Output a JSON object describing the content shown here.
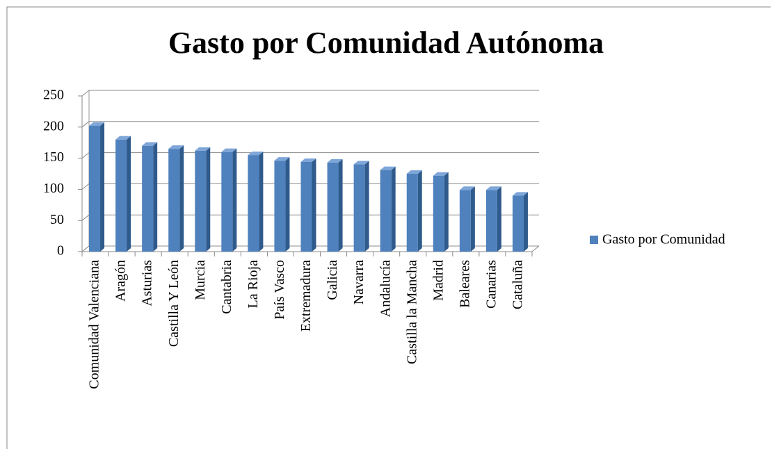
{
  "chart_data": {
    "type": "bar3d",
    "title": "Gasto por Comunidad Autónoma",
    "categories": [
      "Comunidad Valenciana",
      "Aragón",
      "Asturias",
      "Castilla Y León",
      "Murcia",
      "Cantabria",
      "La Rioja",
      "País Vasco",
      "Extremadura",
      "Galicia",
      "Navarra",
      "Andalucía",
      "Castilla la Mancha",
      "Madrid",
      "Baleares",
      "Canarias",
      "Cataluña"
    ],
    "series": [
      {
        "name": "Gasto por Comunidad",
        "color": "#4f81bd",
        "values": [
          202,
          180,
          170,
          165,
          162,
          160,
          155,
          146,
          144,
          143,
          140,
          131,
          125,
          122,
          99,
          99,
          90
        ]
      }
    ],
    "ylim": [
      0,
      250
    ],
    "yticks": [
      0,
      50,
      100,
      150,
      200,
      250
    ],
    "grid": true,
    "legend": "right"
  }
}
